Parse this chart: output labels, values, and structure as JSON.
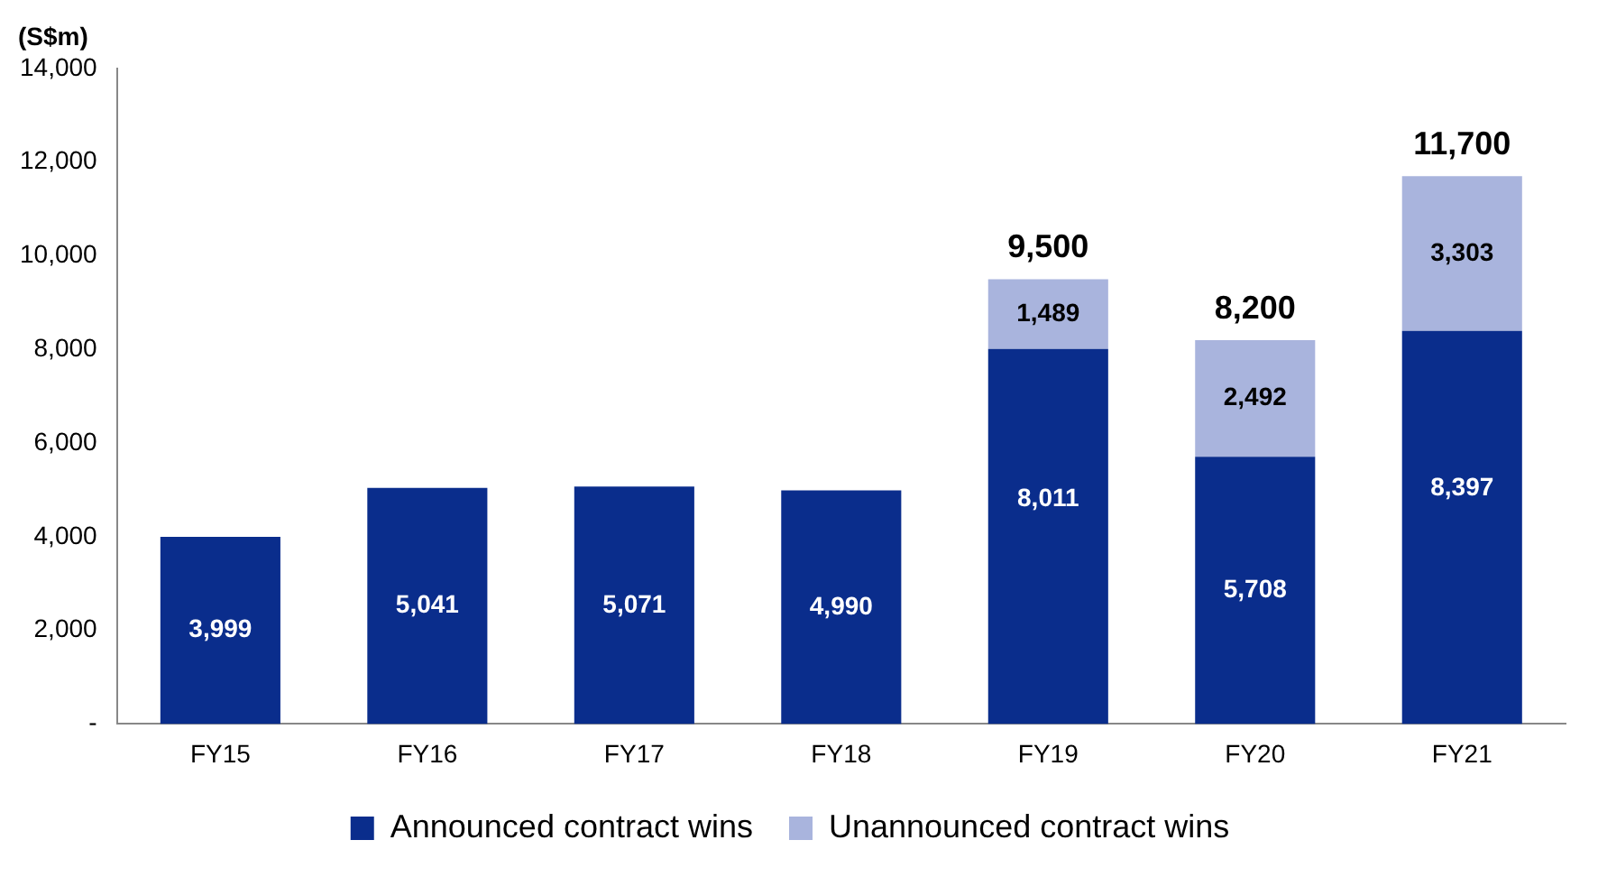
{
  "chart_data": {
    "type": "bar",
    "ylabel": "(S$m)",
    "stacked": true,
    "categories": [
      "FY15",
      "FY16",
      "FY17",
      "FY18",
      "FY19",
      "FY20",
      "FY21"
    ],
    "series": [
      {
        "name": "Announced contract wins",
        "color": "#0a2d8c",
        "values": [
          3999,
          5041,
          5071,
          4990,
          8011,
          5708,
          8397
        ],
        "value_labels": [
          "3,999",
          "5,041",
          "5,071",
          "4,990",
          "8,011",
          "5,708",
          "8,397"
        ]
      },
      {
        "name": "Unannounced contract wins",
        "color": "#a9b4dd",
        "values": [
          null,
          null,
          null,
          null,
          1489,
          2492,
          3303
        ],
        "value_labels": [
          null,
          null,
          null,
          null,
          "1,489",
          "2,492",
          "3,303"
        ]
      }
    ],
    "totals": [
      null,
      null,
      null,
      null,
      "9,500",
      "8,200",
      "11,700"
    ],
    "ylim": [
      0,
      14000
    ],
    "yticks": [
      {
        "value": 0,
        "label": "-"
      },
      {
        "value": 2000,
        "label": "2,000"
      },
      {
        "value": 4000,
        "label": "4,000"
      },
      {
        "value": 6000,
        "label": "6,000"
      },
      {
        "value": 8000,
        "label": "8,000"
      },
      {
        "value": 10000,
        "label": "10,000"
      },
      {
        "value": 12000,
        "label": "12,000"
      },
      {
        "value": 14000,
        "label": "14,000"
      }
    ],
    "grid": false,
    "legend": "bottom"
  }
}
